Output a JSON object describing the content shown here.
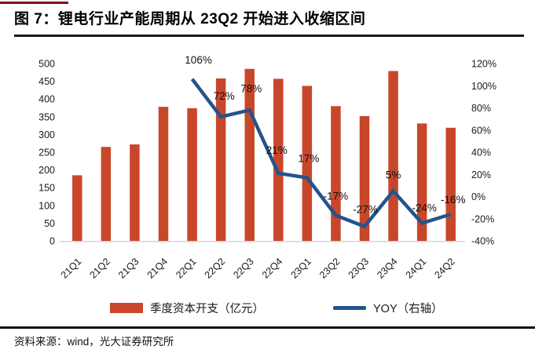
{
  "page": {
    "title": "图 7：锂电行业产能周期从 23Q2 开始进入收缩区间",
    "source": "资料来源：wind，光大证券研究所"
  },
  "colors": {
    "bar": "#c8472b",
    "line": "#24548a",
    "accent_rule": "#7e140b",
    "divider": "#1a1a1a",
    "baseline": "#d6d6d6",
    "text": "#1a1a1a"
  },
  "chart_data": {
    "type": "bar",
    "title": "图 7：锂电行业产能周期从 23Q2 开始进入收缩区间",
    "categories": [
      "21Q1",
      "21Q2",
      "21Q3",
      "21Q4",
      "22Q1",
      "22Q2",
      "22Q3",
      "22Q4",
      "23Q1",
      "23Q2",
      "23Q3",
      "23Q4",
      "24Q1",
      "24Q2"
    ],
    "series": [
      {
        "name": "季度资本开支（亿元）",
        "type": "bar",
        "axis": "left",
        "values": [
          185,
          265,
          272,
          378,
          374,
          458,
          485,
          457,
          437,
          380,
          352,
          479,
          331,
          319
        ]
      },
      {
        "name": "YOY（右轴）",
        "type": "line",
        "axis": "right",
        "values": [
          null,
          null,
          null,
          null,
          106,
          72,
          78,
          21,
          17,
          -17,
          -27,
          5,
          -24,
          -16
        ],
        "point_labels": [
          null,
          null,
          null,
          null,
          "106%",
          "72%",
          "78%",
          "21%",
          "17%",
          "-17%",
          "-27%",
          "5%",
          "-24%",
          "-16%"
        ]
      }
    ],
    "left_axis": {
      "min": 0,
      "max": 500,
      "step": 50,
      "tick_labels": [
        "0",
        "50",
        "100",
        "150",
        "200",
        "250",
        "300",
        "350",
        "400",
        "450",
        "500"
      ]
    },
    "right_axis": {
      "min": -40,
      "max": 120,
      "step": 20,
      "tick_labels": [
        "-40%",
        "-20%",
        "0%",
        "20%",
        "40%",
        "60%",
        "80%",
        "100%",
        "120%"
      ]
    },
    "grid": false,
    "legend_position": "bottom",
    "legend": [
      {
        "label": "季度资本开支（亿元）",
        "marker": "bar"
      },
      {
        "label": "YOY（右轴）",
        "marker": "line"
      }
    ]
  }
}
